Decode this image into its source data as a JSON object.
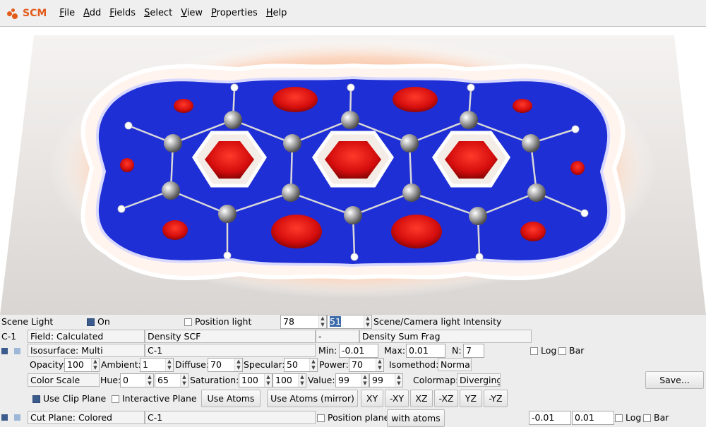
{
  "menubar": {
    "logo": "SCM",
    "items": [
      "File",
      "Add",
      "Fields",
      "Select",
      "View",
      "Properties",
      "Help"
    ],
    "mnemonics": [
      "F",
      "A",
      "F",
      "S",
      "V",
      "P",
      "H"
    ]
  },
  "scene_light": {
    "label": "Scene Light",
    "on_label": "On",
    "position_label": "Position light",
    "intensity_scene": "78",
    "intensity_camera": "51",
    "intensity_label": "Scene/Camera light Intensity"
  },
  "field_row": {
    "id": "C-1",
    "field": "Field: Calculated",
    "density": "Density SCF",
    "dash": "-",
    "density2": "Density Sum Frag"
  },
  "iso_row": {
    "label": "Isosurface: Multi",
    "id": "C-1",
    "min_label": "Min:",
    "min": "-0.01",
    "max_label": "Max:",
    "max": "0.01",
    "n_label": "N:",
    "n": "7",
    "log_label": "Log",
    "bar_label": "Bar"
  },
  "material_row": {
    "opacity_label": "Opacity:",
    "opacity": "100",
    "ambient_label": "Ambient:",
    "ambient": "1",
    "diffuse_label": "Diffuse:",
    "diffuse": "70",
    "specular_label": "Specular:",
    "specular": "50",
    "power_label": "Power:",
    "power": "70",
    "isomethod_label": "Isomethod:",
    "isomethod": "Normal"
  },
  "color_row": {
    "color_scale": "Color Scale",
    "hue_label": "Hue:",
    "hue1": "0",
    "hue2": "65",
    "saturation_label": "Saturation:",
    "sat1": "100",
    "sat2": "100",
    "value_label": "Value:",
    "val1": "99",
    "val2": "99",
    "colormap_label": "Colormap:",
    "colormap": "Diverging",
    "save": "Save..."
  },
  "clip_row": {
    "use_clip": "Use Clip Plane",
    "interactive": "Interactive Plane",
    "use_atoms": "Use Atoms",
    "use_atoms_mirror": "Use Atoms (mirror)",
    "xy": "XY",
    "mxy": "-XY",
    "xz": "XZ",
    "mxz": "-XZ",
    "yz": "YZ",
    "myz": "-YZ"
  },
  "cut_row": {
    "label": "Cut Plane: Colored",
    "id": "C-1",
    "position_plane": "Position plane",
    "with_atoms": "with atoms",
    "min": "-0.01",
    "max": "0.01",
    "log_label": "Log",
    "bar_label": "Bar"
  },
  "colors": {
    "accent": "#e35b19",
    "blue_surface": "#1f2fd6",
    "red_surface": "#e01010",
    "orange_glow": "#f2a77a"
  }
}
